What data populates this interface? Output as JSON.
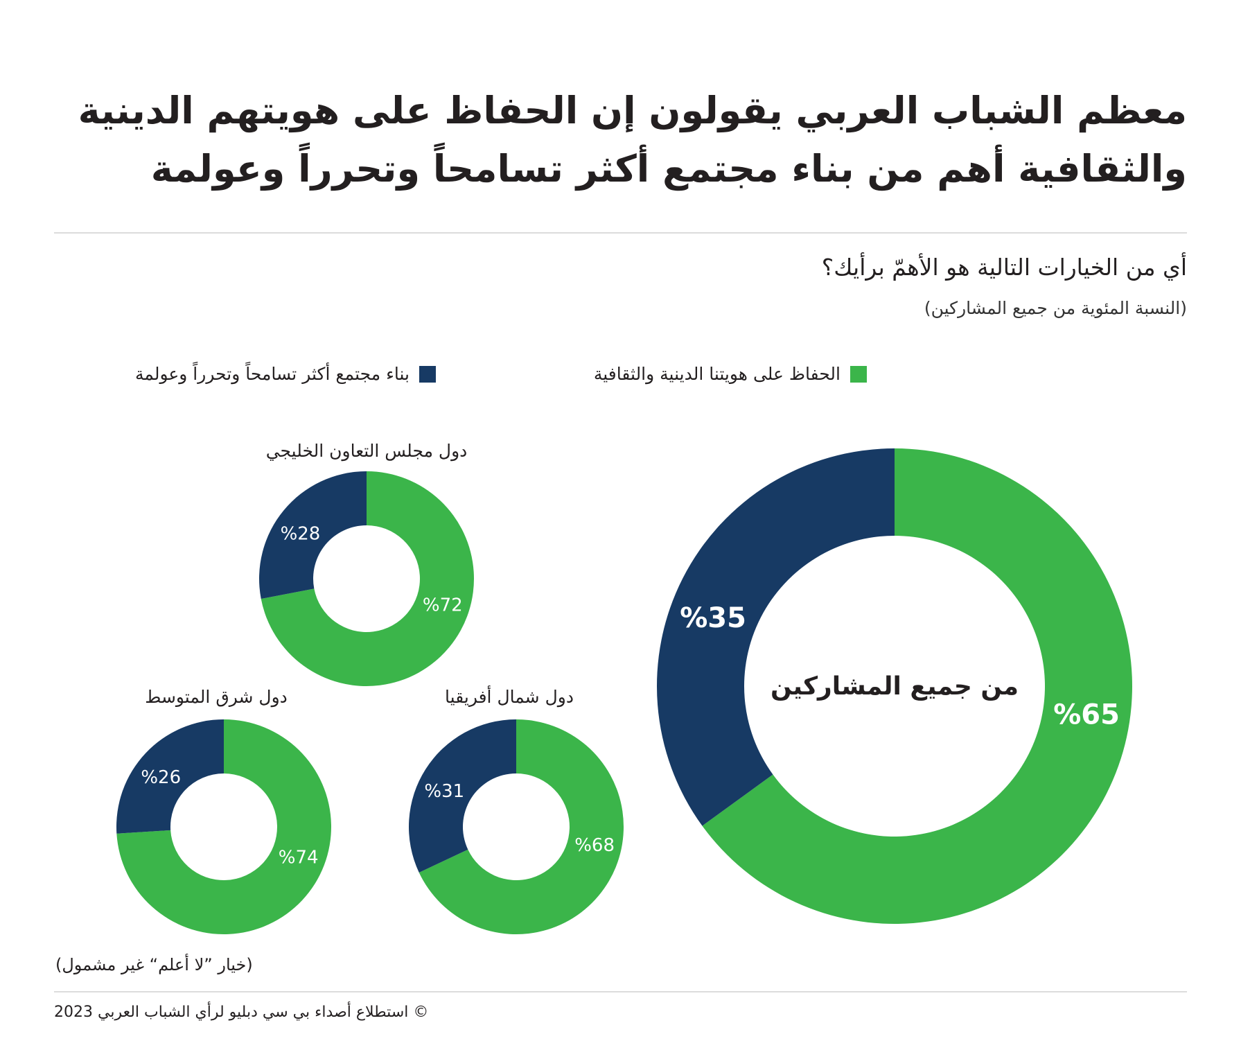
{
  "header": {
    "title_line1": "معظم الشباب العربي يقولون إن الحفاظ على هويتهم الدينية",
    "title_line2": "والثقافية أهم من بناء مجتمع أكثر تسامحاً وتحرراً وعولمة",
    "question": "أي من الخيارات التالية هو الأهمّ برأيك؟",
    "subtitle": "(النسبة المئوية من جميع المشاركين)"
  },
  "colors": {
    "green": "#3bb54a",
    "navy": "#173a64"
  },
  "legend": [
    {
      "label": "الحفاظ على هويتنا الدينية والثقافية",
      "color": "#3bb54a"
    },
    {
      "label": "بناء مجتمع أكثر تسامحاً وتحرراً وعولمة",
      "color": "#173a64"
    }
  ],
  "chart_data": [
    {
      "type": "pie",
      "title": "من جميع المشاركين",
      "categories": [
        "الحفاظ على هويتنا الدينية والثقافية",
        "بناء مجتمع أكثر تسامحاً وتحرراً وعولمة"
      ],
      "values": [
        65,
        35
      ],
      "labels": [
        "%65",
        "%35"
      ]
    },
    {
      "type": "pie",
      "title": "دول مجلس التعاون الخليجي",
      "categories": [
        "الحفاظ على هويتنا الدينية والثقافية",
        "بناء مجتمع أكثر تسامحاً وتحرراً وعولمة"
      ],
      "values": [
        72,
        28
      ],
      "labels": [
        "%72",
        "%28"
      ]
    },
    {
      "type": "pie",
      "title": "دول شمال أفريقيا",
      "categories": [
        "الحفاظ على هويتنا الدينية والثقافية",
        "بناء مجتمع أكثر تسامحاً وتحرراً وعولمة"
      ],
      "values": [
        68,
        31
      ],
      "labels": [
        "%68",
        "%31"
      ]
    },
    {
      "type": "pie",
      "title": "دول شرق المتوسط",
      "categories": [
        "الحفاظ على هويتنا الدينية والثقافية",
        "بناء مجتمع أكثر تسامحاً وتحرراً وعولمة"
      ],
      "values": [
        74,
        26
      ],
      "labels": [
        "%74",
        "%26"
      ]
    }
  ],
  "footer": {
    "note": "(خيار ”لا أعلم“ غير مشمول)",
    "source": "© استطلاع أصداء بي سي دبليو لرأي الشباب العربي 2023"
  }
}
